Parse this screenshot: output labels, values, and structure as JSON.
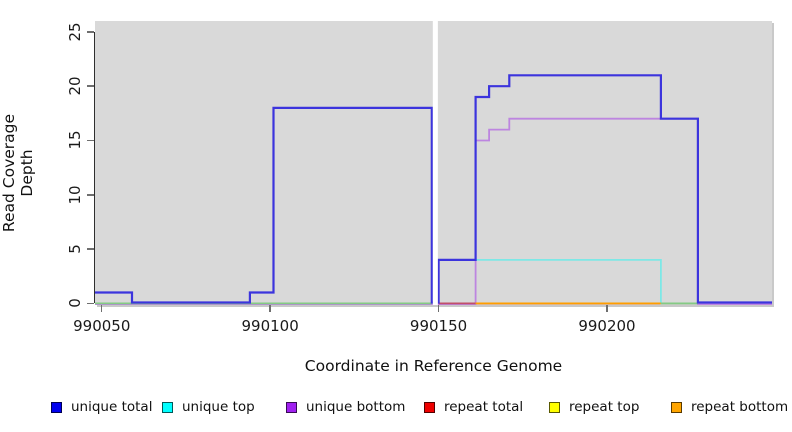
{
  "chart_data": {
    "type": "line",
    "subtype": "step-post",
    "title": "",
    "xlabel": "Coordinate in Reference Genome",
    "ylabel": "Read Coverage Depth",
    "xlim": [
      990048,
      990249
    ],
    "ylim": [
      -0.15,
      26.0
    ],
    "x_ticks": [
      "990050",
      "990100",
      "990150",
      "990200"
    ],
    "x_tick_values": [
      990050,
      990100,
      990150,
      990200
    ],
    "y_ticks": [
      "0",
      "5",
      "10",
      "15",
      "20",
      "25"
    ],
    "y_tick_values": [
      0,
      5,
      10,
      15,
      20,
      25
    ],
    "grid": false,
    "plot_bg": "#d9d9d9",
    "legend_position": "bottom",
    "gap_band": {
      "x_start": 990148.3,
      "x_end": 990149.8,
      "color": "#ffffff"
    },
    "series": [
      {
        "name": "unique total",
        "legend_color": "#0000ee",
        "render_color": "#3c34dd",
        "line_width": 2.2,
        "zero_offset": -0.9,
        "points": [
          [
            990048,
            1
          ],
          [
            990059,
            0
          ],
          [
            990094,
            1
          ],
          [
            990101,
            18
          ],
          [
            990148,
            0
          ],
          [
            990150,
            4
          ],
          [
            990161,
            19
          ],
          [
            990165,
            20
          ],
          [
            990171,
            21
          ],
          [
            990216,
            17
          ],
          [
            990227,
            0
          ]
        ]
      },
      {
        "name": "unique top",
        "legend_color": "#00ffff",
        "render_color": "#7de8e6",
        "line_width": 1.8,
        "zero_offset": 0,
        "points": [
          [
            990048,
            0
          ],
          [
            990150,
            4
          ],
          [
            990216,
            0
          ]
        ]
      },
      {
        "name": "unique bottom",
        "legend_color": "#a020f0",
        "render_color": "#bd85e0",
        "line_width": 1.8,
        "zero_offset": 0.7,
        "points": [
          [
            990048,
            0
          ],
          [
            990161,
            15
          ],
          [
            990165,
            16
          ],
          [
            990171,
            17
          ],
          [
            990227,
            0
          ]
        ]
      },
      {
        "name": "repeat total",
        "legend_color": "#ee0000",
        "render_color": "#c04f6a",
        "line_width": 1.8,
        "zero_offset": 0,
        "points": [
          [
            990048,
            0
          ]
        ]
      },
      {
        "name": "repeat top",
        "legend_color": "#ffff00",
        "render_color": "#dede7a",
        "line_width": 1.8,
        "zero_offset": 0,
        "points": [
          [
            990048,
            0
          ]
        ]
      },
      {
        "name": "repeat bottom",
        "legend_color": "#ffa500",
        "render_color": "#ff9e00",
        "line_width": 1.8,
        "zero_offset": 0,
        "points": [
          [
            990048,
            0
          ]
        ]
      }
    ],
    "baseline_overlap_segments": [
      {
        "from": 990048,
        "to": 990148,
        "color": "#84ca84"
      },
      {
        "from": 990150,
        "to": 990161,
        "color": "#c04f6a"
      },
      {
        "from": 990161,
        "to": 990216,
        "color": "#ff9e00"
      },
      {
        "from": 990216,
        "to": 990227,
        "color": "#84ca84"
      }
    ]
  },
  "legend": {
    "items": [
      {
        "label": "unique total",
        "color": "#0000ee"
      },
      {
        "label": "unique top",
        "color": "#00ffff"
      },
      {
        "label": "unique bottom",
        "color": "#a020f0"
      },
      {
        "label": "repeat total",
        "color": "#ee0000"
      },
      {
        "label": "repeat top",
        "color": "#ffff00"
      },
      {
        "label": "repeat bottom",
        "color": "#ffa500"
      }
    ]
  }
}
